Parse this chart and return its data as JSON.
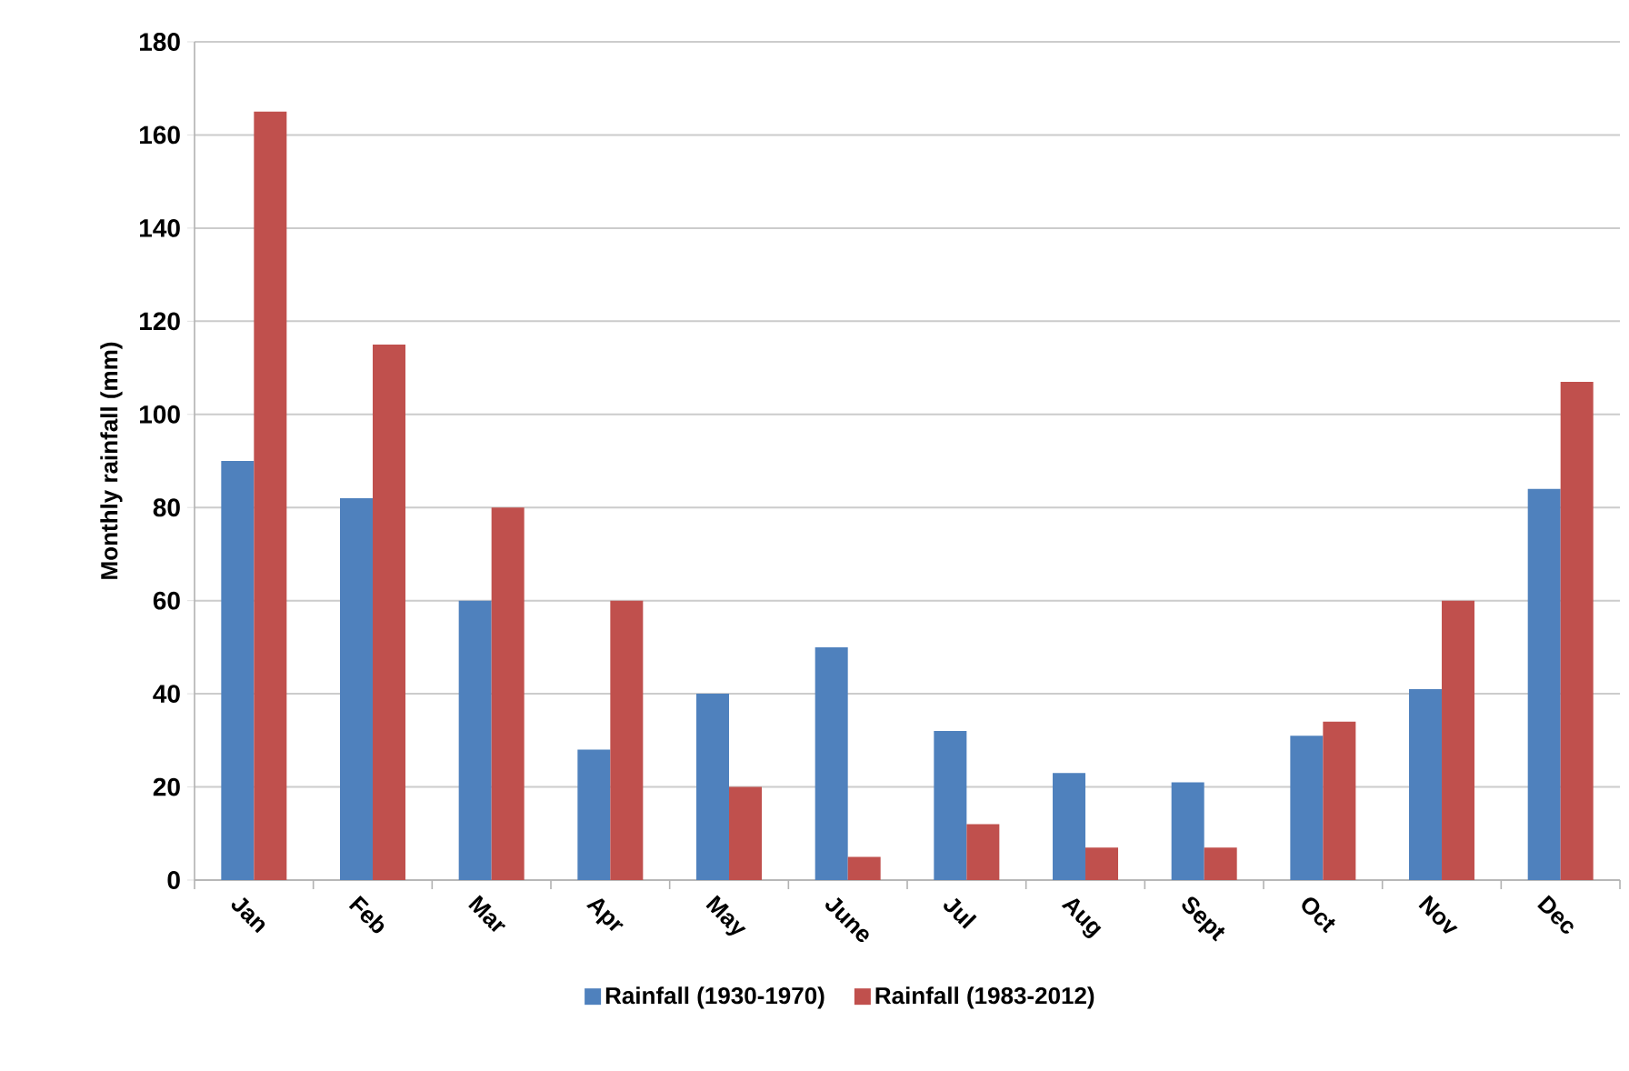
{
  "chart_data": {
    "type": "bar",
    "ylabel": "Monthly rainfall (mm)",
    "categories": [
      "Jan",
      "Feb",
      "Mar",
      "Apr",
      "May",
      "June",
      "Jul",
      "Aug",
      "Sept",
      "Oct",
      "Nov",
      "Dec"
    ],
    "series": [
      {
        "name": "Rainfall (1930-1970)",
        "color": "#4f81bd",
        "values": [
          90,
          82,
          60,
          28,
          40,
          50,
          32,
          23,
          21,
          31,
          41,
          84
        ]
      },
      {
        "name": "Rainfall (1983-2012)",
        "color": "#c0504d",
        "values": [
          165,
          115,
          80,
          60,
          20,
          5,
          12,
          7,
          7,
          34,
          60,
          107
        ]
      }
    ],
    "ylim": [
      0,
      180
    ],
    "yticks": [
      0,
      20,
      40,
      60,
      80,
      100,
      120,
      140,
      160,
      180
    ],
    "grid": "y",
    "legend": "bottom"
  }
}
